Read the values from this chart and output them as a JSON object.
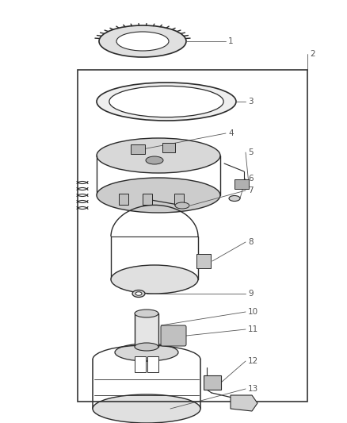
{
  "background_color": "#ffffff",
  "line_color": "#2a2a2a",
  "label_color": "#555555",
  "fig_width": 4.38,
  "fig_height": 5.33,
  "dpi": 100
}
